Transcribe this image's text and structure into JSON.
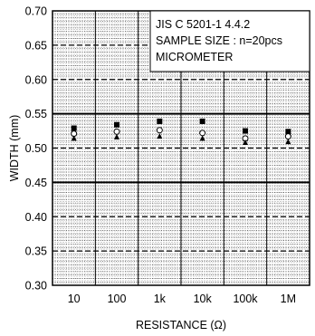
{
  "chart_data": {
    "type": "scatter",
    "title": "",
    "xlabel": "RESISTANCE (Ω)",
    "ylabel": "WIDTH (mm)",
    "categories": [
      "10",
      "100",
      "1k",
      "10k",
      "100k",
      "1M"
    ],
    "ylim": [
      0.3,
      0.7
    ],
    "yticks": [
      "0.30",
      "0.35",
      "0.40",
      "0.45",
      "0.50",
      "0.55",
      "0.60",
      "0.65",
      "0.70"
    ],
    "grid": true,
    "limits": {
      "upper": 0.55,
      "lower": 0.45
    },
    "series": [
      {
        "marker": "filled-square",
        "values": [
          0.529,
          0.534,
          0.539,
          0.539,
          0.525,
          0.524
        ]
      },
      {
        "marker": "open-circle",
        "values": [
          0.521,
          0.524,
          0.526,
          0.522,
          0.514,
          0.517
        ]
      },
      {
        "marker": "filled-triangle",
        "values": [
          0.514,
          0.516,
          0.517,
          0.514,
          0.508,
          0.509
        ]
      }
    ],
    "annotation_lines": [
      "JIS C 5201-1 4.4.2",
      "SAMPLE SIZE : n=20pcs",
      "MICROMETER"
    ]
  }
}
